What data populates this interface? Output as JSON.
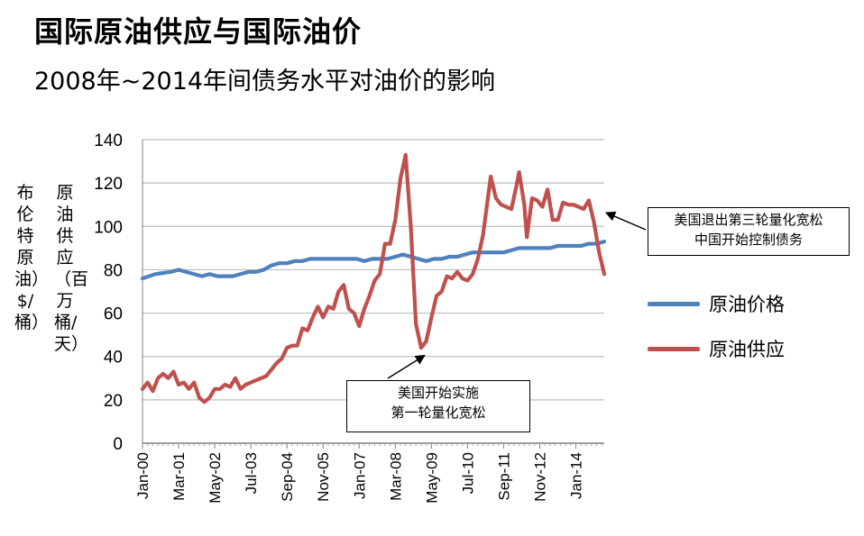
{
  "title": "国际原油供应与国际油价",
  "subtitle": "2008年~2014年间债务水平对油价的影响",
  "chart_data": {
    "type": "line",
    "title": "国际原油供应与国际油价",
    "subtitle": "2008年~2014年间债务水平对油价的影响",
    "ylabel_price": "布伦特原油）$/桶）",
    "ylabel_supply": "原油供应（百万桶/天）",
    "ylim": [
      0,
      140
    ],
    "yticks": [
      0,
      20,
      40,
      60,
      80,
      100,
      120,
      140
    ],
    "x_range": [
      "2000-01",
      "2014-12"
    ],
    "xticks": [
      "Jan-00",
      "Mar-01",
      "May-02",
      "Jul-03",
      "Sep-04",
      "Nov-05",
      "Jan-07",
      "Mar-08",
      "May-09",
      "Jul-10",
      "Sep-11",
      "Nov-12",
      "Jan-14"
    ],
    "grid": true,
    "legend_position": "right",
    "series": [
      {
        "name": "原油价格",
        "color": "#4f81bd",
        "points": [
          [
            "2000-01",
            76
          ],
          [
            "2000-06",
            78
          ],
          [
            "2000-12",
            79
          ],
          [
            "2001-03",
            80
          ],
          [
            "2001-06",
            79
          ],
          [
            "2001-09",
            78
          ],
          [
            "2001-12",
            77
          ],
          [
            "2002-03",
            78
          ],
          [
            "2002-06",
            77
          ],
          [
            "2002-09",
            77
          ],
          [
            "2002-12",
            77
          ],
          [
            "2003-03",
            78
          ],
          [
            "2003-06",
            79
          ],
          [
            "2003-09",
            79
          ],
          [
            "2003-12",
            80
          ],
          [
            "2004-03",
            82
          ],
          [
            "2004-06",
            83
          ],
          [
            "2004-09",
            83
          ],
          [
            "2004-12",
            84
          ],
          [
            "2005-03",
            84
          ],
          [
            "2005-06",
            85
          ],
          [
            "2005-09",
            85
          ],
          [
            "2005-12",
            85
          ],
          [
            "2006-03",
            85
          ],
          [
            "2006-06",
            85
          ],
          [
            "2006-09",
            85
          ],
          [
            "2006-12",
            85
          ],
          [
            "2007-03",
            84
          ],
          [
            "2007-06",
            85
          ],
          [
            "2007-09",
            85
          ],
          [
            "2007-12",
            85
          ],
          [
            "2008-03",
            86
          ],
          [
            "2008-06",
            87
          ],
          [
            "2008-09",
            86
          ],
          [
            "2008-12",
            85
          ],
          [
            "2009-03",
            84
          ],
          [
            "2009-06",
            85
          ],
          [
            "2009-09",
            85
          ],
          [
            "2009-12",
            86
          ],
          [
            "2010-03",
            86
          ],
          [
            "2010-06",
            87
          ],
          [
            "2010-09",
            88
          ],
          [
            "2010-12",
            88
          ],
          [
            "2011-03",
            88
          ],
          [
            "2011-06",
            88
          ],
          [
            "2011-09",
            88
          ],
          [
            "2011-12",
            89
          ],
          [
            "2012-03",
            90
          ],
          [
            "2012-06",
            90
          ],
          [
            "2012-09",
            90
          ],
          [
            "2012-12",
            90
          ],
          [
            "2013-03",
            90
          ],
          [
            "2013-06",
            91
          ],
          [
            "2013-09",
            91
          ],
          [
            "2013-12",
            91
          ],
          [
            "2014-03",
            91
          ],
          [
            "2014-06",
            92
          ],
          [
            "2014-09",
            92
          ],
          [
            "2014-12",
            93
          ]
        ]
      },
      {
        "name": "原油供应",
        "color": "#c0504d",
        "points": [
          [
            "2000-01",
            25
          ],
          [
            "2000-03",
            28
          ],
          [
            "2000-05",
            24
          ],
          [
            "2000-07",
            30
          ],
          [
            "2000-09",
            32
          ],
          [
            "2000-11",
            30
          ],
          [
            "2001-01",
            33
          ],
          [
            "2001-03",
            27
          ],
          [
            "2001-05",
            28
          ],
          [
            "2001-07",
            25
          ],
          [
            "2001-09",
            28
          ],
          [
            "2001-11",
            21
          ],
          [
            "2002-01",
            19
          ],
          [
            "2002-03",
            21
          ],
          [
            "2002-05",
            25
          ],
          [
            "2002-07",
            25
          ],
          [
            "2002-09",
            27
          ],
          [
            "2002-11",
            26
          ],
          [
            "2003-01",
            30
          ],
          [
            "2003-03",
            25
          ],
          [
            "2003-05",
            27
          ],
          [
            "2003-07",
            28
          ],
          [
            "2003-09",
            29
          ],
          [
            "2003-11",
            30
          ],
          [
            "2004-01",
            31
          ],
          [
            "2004-03",
            34
          ],
          [
            "2004-05",
            37
          ],
          [
            "2004-07",
            39
          ],
          [
            "2004-09",
            44
          ],
          [
            "2004-11",
            45
          ],
          [
            "2005-01",
            45
          ],
          [
            "2005-03",
            53
          ],
          [
            "2005-05",
            52
          ],
          [
            "2005-07",
            58
          ],
          [
            "2005-09",
            63
          ],
          [
            "2005-11",
            58
          ],
          [
            "2006-01",
            63
          ],
          [
            "2006-03",
            62
          ],
          [
            "2006-05",
            70
          ],
          [
            "2006-07",
            73
          ],
          [
            "2006-09",
            62
          ],
          [
            "2006-11",
            60
          ],
          [
            "2007-01",
            54
          ],
          [
            "2007-03",
            62
          ],
          [
            "2007-05",
            68
          ],
          [
            "2007-07",
            75
          ],
          [
            "2007-09",
            78
          ],
          [
            "2007-11",
            92
          ],
          [
            "2008-01",
            92
          ],
          [
            "2008-03",
            103
          ],
          [
            "2008-05",
            122
          ],
          [
            "2008-07",
            133
          ],
          [
            "2008-09",
            100
          ],
          [
            "2008-11",
            55
          ],
          [
            "2009-01",
            44
          ],
          [
            "2009-03",
            47
          ],
          [
            "2009-05",
            58
          ],
          [
            "2009-07",
            68
          ],
          [
            "2009-09",
            70
          ],
          [
            "2009-11",
            77
          ],
          [
            "2010-01",
            76
          ],
          [
            "2010-03",
            79
          ],
          [
            "2010-05",
            76
          ],
          [
            "2010-07",
            75
          ],
          [
            "2010-09",
            78
          ],
          [
            "2010-11",
            85
          ],
          [
            "2011-01",
            96
          ],
          [
            "2011-03",
            114
          ],
          [
            "2011-04",
            123
          ],
          [
            "2011-06",
            113
          ],
          [
            "2011-08",
            110
          ],
          [
            "2011-10",
            109
          ],
          [
            "2011-12",
            108
          ],
          [
            "2012-02",
            119
          ],
          [
            "2012-03",
            125
          ],
          [
            "2012-05",
            110
          ],
          [
            "2012-06",
            95
          ],
          [
            "2012-08",
            113
          ],
          [
            "2012-10",
            112
          ],
          [
            "2012-12",
            109
          ],
          [
            "2013-02",
            117
          ],
          [
            "2013-04",
            103
          ],
          [
            "2013-06",
            103
          ],
          [
            "2013-08",
            111
          ],
          [
            "2013-10",
            110
          ],
          [
            "2013-12",
            110
          ],
          [
            "2014-02",
            109
          ],
          [
            "2014-04",
            108
          ],
          [
            "2014-06",
            112
          ],
          [
            "2014-08",
            102
          ],
          [
            "2014-10",
            88
          ],
          [
            "2014-12",
            78
          ]
        ]
      }
    ],
    "annotations": [
      {
        "lines": [
          "美国开始实施",
          "第一轮量化宽松"
        ],
        "points_to": [
          "2009-01",
          43
        ]
      },
      {
        "lines": [
          "美国退出第三轮量化宽松",
          "中国开始控制债务"
        ],
        "points_to": [
          "2014-12",
          103
        ]
      }
    ]
  },
  "legend": {
    "price_label": "原油价格",
    "supply_label": "原油供应",
    "price_color": "#4f81bd",
    "supply_color": "#c0504d"
  },
  "callouts": {
    "qe1_line1": "美国开始实施",
    "qe1_line2": "第一轮量化宽松",
    "qe3_line1": "美国退出第三轮量化宽松",
    "qe3_line2": "中国开始控制债务"
  }
}
